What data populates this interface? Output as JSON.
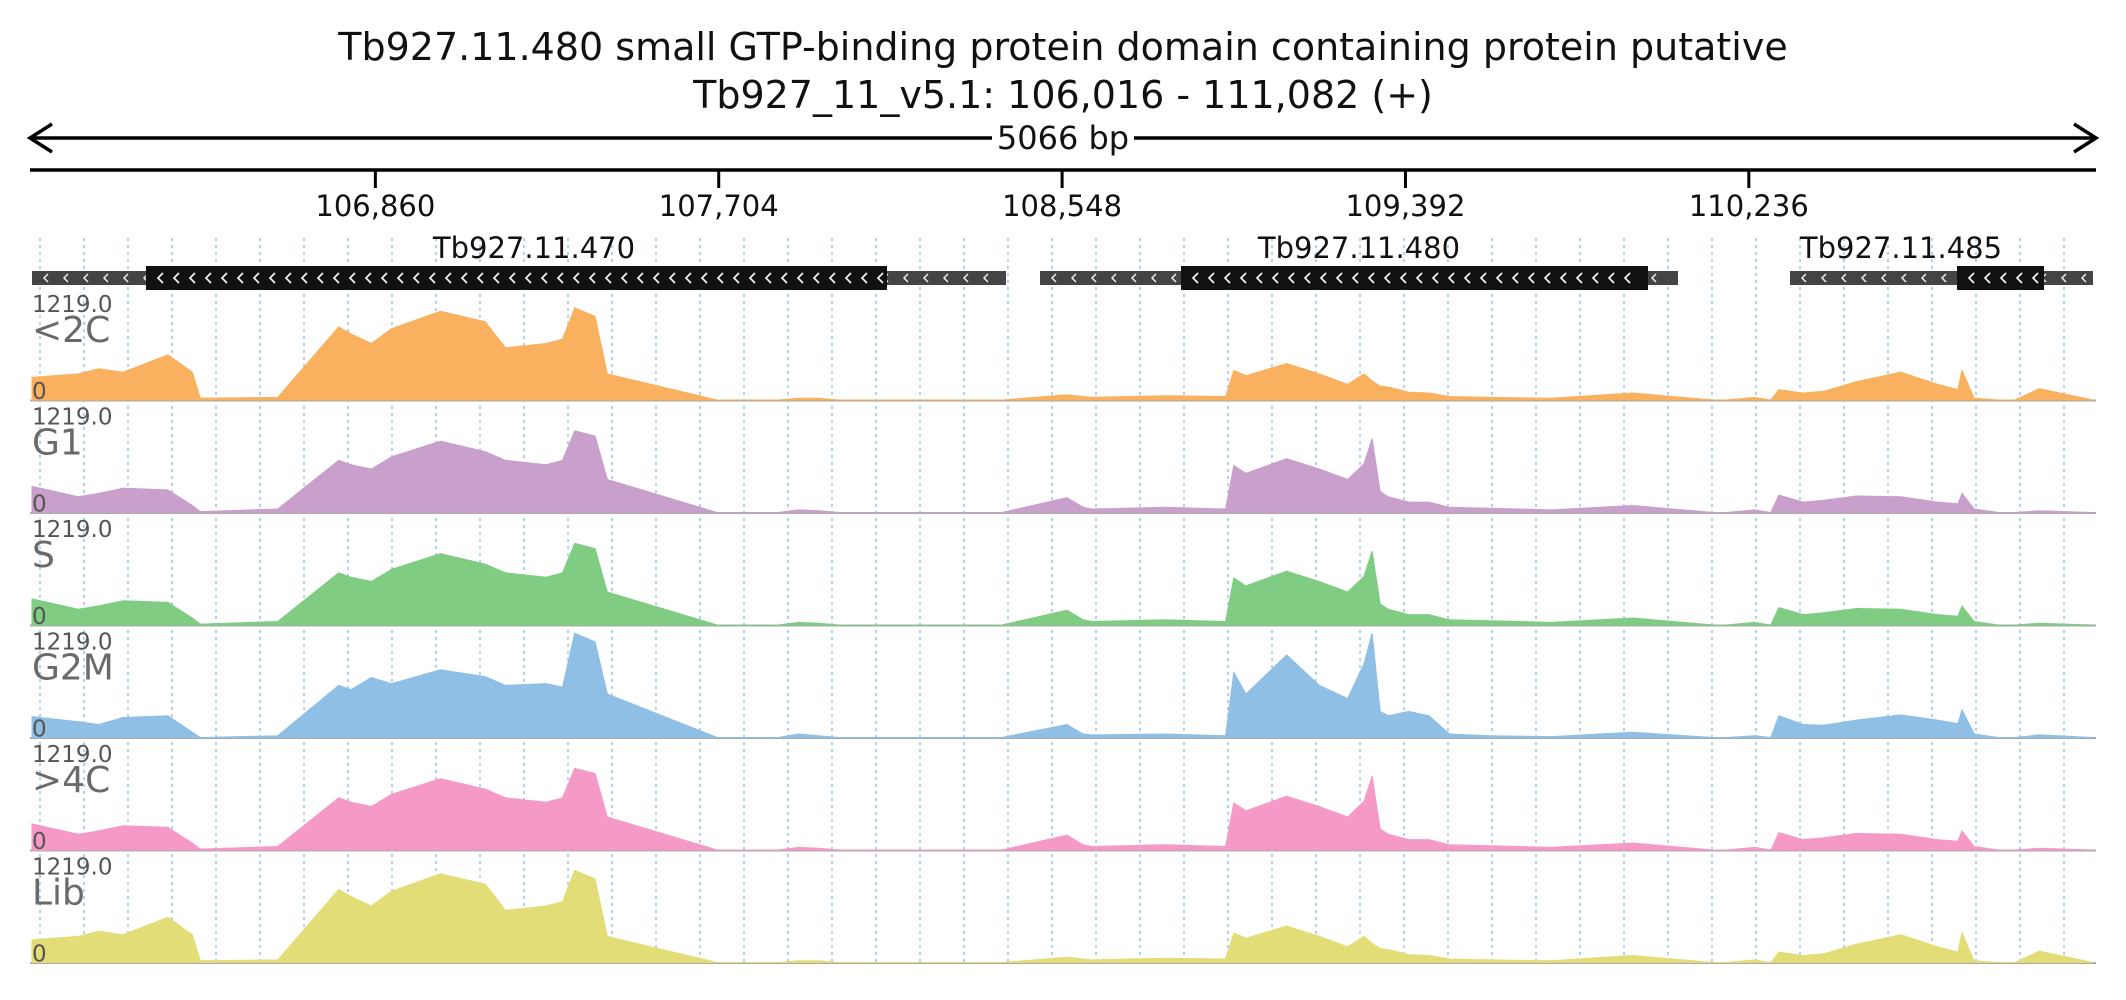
{
  "header": {
    "title_line1": "Tb927.11.480  small GTP-binding protein domain containing protein  putative",
    "title_line2": "Tb927_11_v5.1: 106,016 - 111,082 (+)",
    "span_label": "5066 bp"
  },
  "ruler": {
    "ticks": [
      "106,860",
      "107,704",
      "108,548",
      "109,392",
      "110,236"
    ]
  },
  "genes": [
    {
      "name": "Tb927.11.470",
      "strand": "-"
    },
    {
      "name": "Tb927.11.480",
      "strand": "-"
    },
    {
      "name": "Tb927.11.485",
      "strand": "-"
    }
  ],
  "chart_data": {
    "type": "area",
    "region": {
      "chrom": "Tb927_11_v5.1",
      "start": 106016,
      "end": 111082,
      "strand": "+"
    },
    "ylim": [
      0,
      1219.0
    ],
    "ymax_label": "1219.0",
    "ymin_label": "0",
    "x_ticks": [
      106860,
      107704,
      108548,
      109392,
      110236
    ],
    "x_label_format": "thousands-comma",
    "series": [
      {
        "name": "<2C",
        "color": "#f9b15f"
      },
      {
        "name": "G1",
        "color": "#c99fcc"
      },
      {
        "name": "S",
        "color": "#80cc83"
      },
      {
        "name": "G2M",
        "color": "#8fbfe4"
      },
      {
        "name": ">4C",
        "color": "#f59ac7"
      },
      {
        "name": "Lib",
        "color": "#e3dd78"
      }
    ],
    "coverage_profile": {
      "x": [
        106016,
        106130,
        106180,
        106240,
        106350,
        106410,
        106430,
        106620,
        106770,
        106800,
        106850,
        106900,
        107020,
        107130,
        107180,
        107280,
        107320,
        107350,
        107400,
        107430,
        107700,
        107850,
        107900,
        107950,
        108000,
        108200,
        108400,
        108560,
        108600,
        108620,
        108800,
        108950,
        108970,
        109000,
        109100,
        109180,
        109250,
        109290,
        109310,
        109330,
        109350,
        109400,
        109450,
        109500,
        109600,
        109750,
        109950,
        110150,
        110180,
        110250,
        110290,
        110310,
        110370,
        110420,
        110500,
        110610,
        110700,
        110750,
        110760,
        110790,
        110850,
        110890,
        110950,
        111082
      ],
      "y_G2M": [
        240,
        180,
        150,
        230,
        250,
        60,
        0,
        20,
        600,
        550,
        690,
        620,
        780,
        700,
        600,
        620,
        580,
        1200,
        1100,
        500,
        0,
        0,
        40,
        20,
        0,
        0,
        0,
        150,
        40,
        30,
        40,
        20,
        750,
        500,
        950,
        600,
        450,
        850,
        1200,
        300,
        250,
        300,
        250,
        40,
        20,
        10,
        60,
        0,
        0,
        20,
        0,
        250,
        150,
        140,
        200,
        260,
        200,
        160,
        320,
        40,
        0,
        0,
        30,
        0
      ],
      "y_S": [
        300,
        180,
        220,
        280,
        260,
        80,
        10,
        40,
        600,
        550,
        500,
        640,
        820,
        700,
        600,
        550,
        600,
        940,
        880,
        380,
        0,
        0,
        30,
        20,
        0,
        0,
        0,
        170,
        60,
        40,
        60,
        40,
        540,
        450,
        620,
        500,
        380,
        560,
        850,
        240,
        180,
        120,
        120,
        60,
        50,
        30,
        80,
        0,
        0,
        30,
        0,
        200,
        120,
        140,
        190,
        180,
        120,
        100,
        220,
        40,
        0,
        0,
        20,
        0
      ],
      "y_Lib": [
        260,
        300,
        360,
        320,
        520,
        320,
        20,
        30,
        840,
        760,
        650,
        820,
        1020,
        900,
        600,
        650,
        700,
        1060,
        960,
        300,
        0,
        0,
        20,
        20,
        0,
        0,
        0,
        60,
        40,
        30,
        50,
        40,
        340,
        280,
        420,
        300,
        180,
        300,
        220,
        160,
        150,
        90,
        80,
        40,
        30,
        20,
        80,
        0,
        0,
        30,
        0,
        120,
        80,
        100,
        210,
        320,
        180,
        120,
        340,
        20,
        0,
        0,
        130,
        0
      ]
    }
  }
}
